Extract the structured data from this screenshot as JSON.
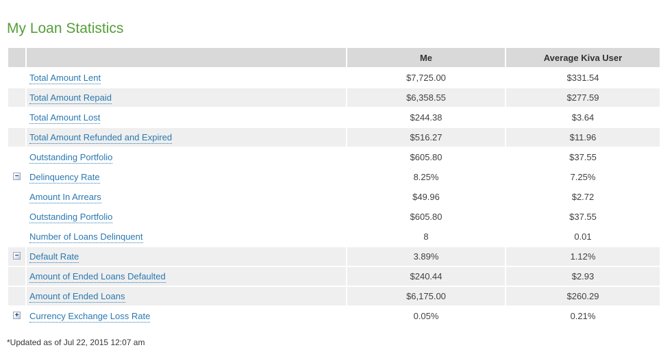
{
  "page": {
    "title": "My Loan Statistics",
    "footer_note": "*Updated as of Jul 22, 2015 12:07 am"
  },
  "colors": {
    "title_green": "#549e39",
    "link_blue": "#2a78b0",
    "header_bg": "#d9d9d9",
    "stripe_bg": "#efefef",
    "text": "#333333"
  },
  "table": {
    "header": {
      "me_label": "Me",
      "avg_label": "Average Kiva User"
    },
    "rows": [
      {
        "label": "Total Amount Lent",
        "me": "$7,725.00",
        "avg": "$331.54",
        "toggle": ""
      },
      {
        "label": "Total Amount Repaid",
        "me": "$6,358.55",
        "avg": "$277.59",
        "toggle": ""
      },
      {
        "label": "Total Amount Lost",
        "me": "$244.38",
        "avg": "$3.64",
        "toggle": ""
      },
      {
        "label": "Total Amount Refunded and Expired",
        "me": "$516.27",
        "avg": "$11.96",
        "toggle": ""
      },
      {
        "label": "Outstanding Portfolio",
        "me": "$605.80",
        "avg": "$37.55",
        "toggle": ""
      },
      {
        "label": "Delinquency Rate",
        "me": "8.25%",
        "avg": "7.25%",
        "toggle": "−"
      },
      {
        "label": "Amount In Arrears",
        "me": "$49.96",
        "avg": "$2.72",
        "toggle": ""
      },
      {
        "label": "Outstanding Portfolio",
        "me": "$605.80",
        "avg": "$37.55",
        "toggle": ""
      },
      {
        "label": "Number of Loans Delinquent",
        "me": "8",
        "avg": "0.01",
        "toggle": ""
      },
      {
        "label": "Default Rate",
        "me": "3.89%",
        "avg": "1.12%",
        "toggle": "−"
      },
      {
        "label": "Amount of Ended Loans Defaulted",
        "me": "$240.44",
        "avg": "$2.93",
        "toggle": ""
      },
      {
        "label": "Amount of Ended Loans",
        "me": "$6,175.00",
        "avg": "$260.29",
        "toggle": ""
      },
      {
        "label": "Currency Exchange Loss Rate",
        "me": "0.05%",
        "avg": "0.21%",
        "toggle": "+"
      }
    ]
  }
}
